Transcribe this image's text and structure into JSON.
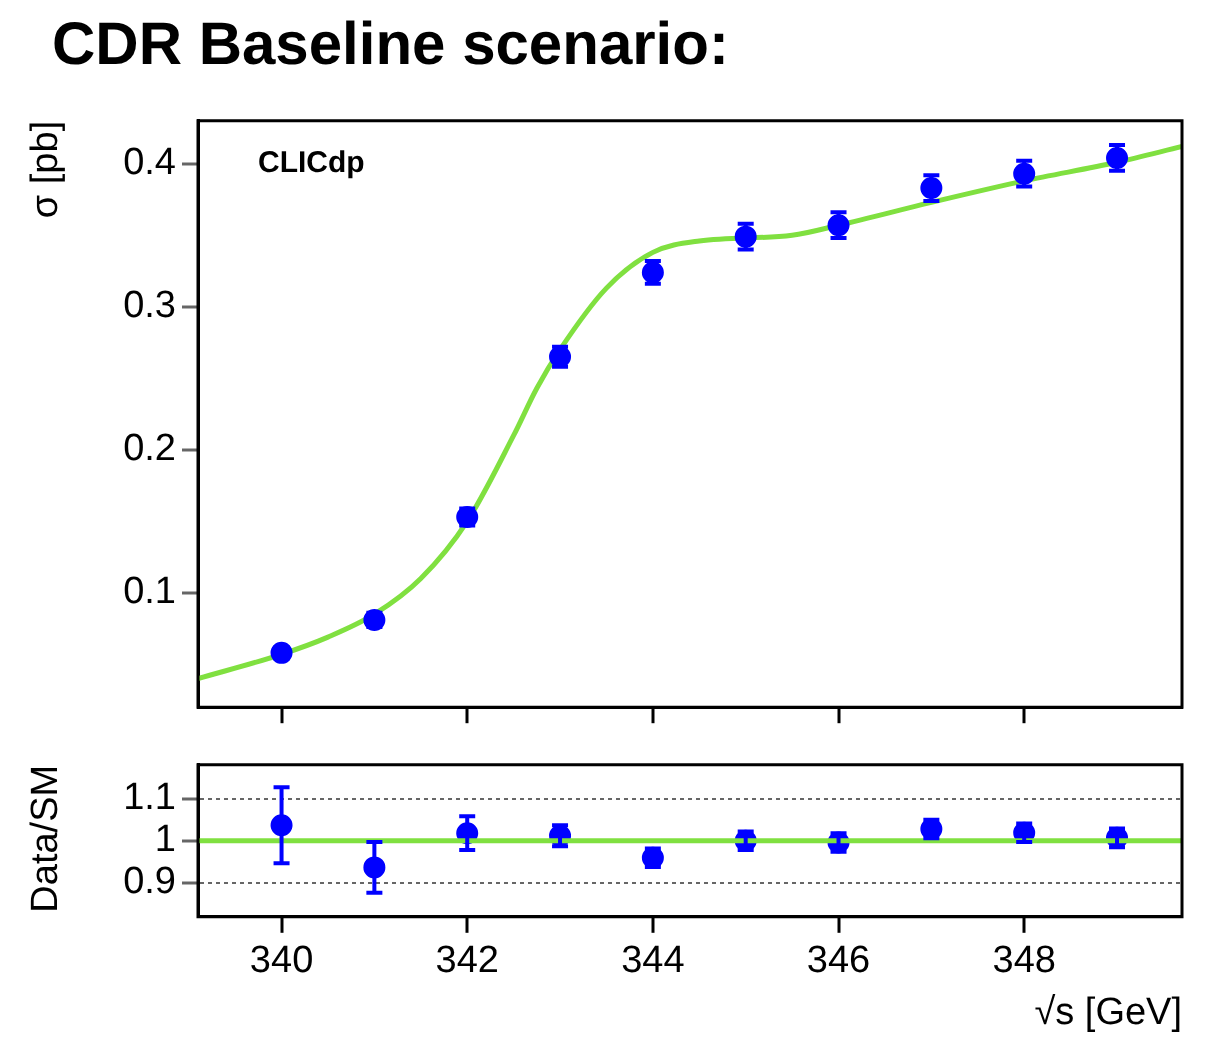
{
  "chart_data": [
    {
      "type": "scatter",
      "title": "CDR Baseline scenario:",
      "ylabel": "σ [pb]",
      "annotations": [
        "CLICdp"
      ],
      "xlim": [
        339.1,
        349.7
      ],
      "xticks": [
        340,
        342,
        344,
        346,
        348
      ],
      "ylim": [
        0.02,
        0.43
      ],
      "yticks": [
        0.1,
        0.2,
        0.3,
        0.4
      ],
      "tick_labels": "y",
      "series": [
        {
          "type": "scatter",
          "marker": "circle",
          "color": "#0000ff",
          "x": [
            340,
            341,
            342,
            343,
            344,
            345,
            346,
            347,
            348,
            349
          ],
          "values": [
            0.058,
            0.081,
            0.153,
            0.265,
            0.324,
            0.349,
            0.357,
            0.383,
            0.393,
            0.404
          ],
          "errors": [
            0.004,
            0.005,
            0.006,
            0.007,
            0.008,
            0.009,
            0.009,
            0.009,
            0.009,
            0.009
          ]
        },
        {
          "type": "line",
          "marker": "none",
          "color": "#80e040",
          "x": [
            339.1,
            340,
            340.5,
            341,
            341.5,
            342,
            342.5,
            342.75,
            343,
            343.5,
            344,
            344.5,
            345.5,
            346,
            347,
            348,
            349,
            349.7
          ],
          "values": [
            0.04,
            0.057,
            0.069,
            0.085,
            0.11,
            0.15,
            0.21,
            0.243,
            0.27,
            0.313,
            0.338,
            0.346,
            0.35,
            0.357,
            0.373,
            0.388,
            0.401,
            0.412
          ]
        }
      ]
    },
    {
      "type": "scatter",
      "xlabel": "√s [GeV]",
      "ylabel": "Data/SM",
      "xlim": [
        339.1,
        349.7
      ],
      "xticks": [
        340,
        342,
        344,
        346,
        348
      ],
      "ylim": [
        0.82,
        1.18
      ],
      "yticks": [
        0.9,
        1,
        1.1
      ],
      "grid": "y",
      "marker": "circle",
      "ref_lines": [
        {
          "axis": "y",
          "value": 1,
          "color": "#80e040"
        }
      ],
      "series": [
        {
          "type": "scatter",
          "color": "#0000ff",
          "x": [
            340,
            341,
            342,
            343,
            344,
            345,
            346,
            347,
            348,
            349
          ],
          "values": [
            1.037,
            0.937,
            1.018,
            1.012,
            0.96,
            1.0,
            0.996,
            1.028,
            1.019,
            1.007
          ],
          "errors": [
            0.09,
            0.06,
            0.04,
            0.025,
            0.022,
            0.022,
            0.022,
            0.022,
            0.022,
            0.022
          ]
        }
      ]
    }
  ]
}
